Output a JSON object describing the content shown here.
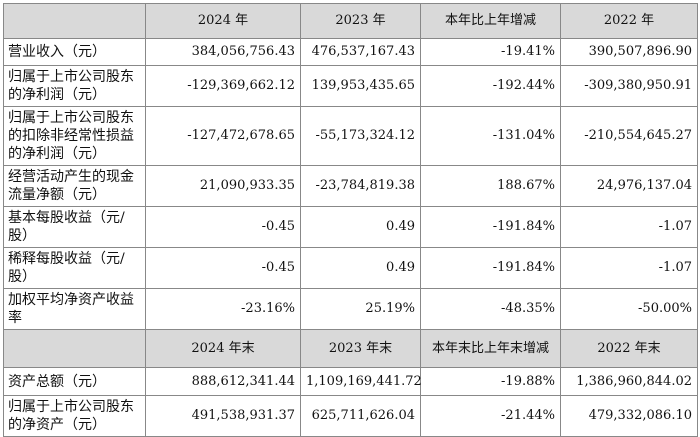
{
  "table": {
    "header": [
      "2024 年",
      "2023 年",
      "本年比上年增减",
      "2022 年"
    ],
    "rows": [
      [
        "营业收入（元）",
        "384,056,756.43",
        "476,537,167.43",
        "-19.41%",
        "390,507,896.90"
      ],
      [
        "归属于上市公司股东的净利润（元）",
        "-129,369,662.12",
        "139,953,435.65",
        "-192.44%",
        "-309,380,950.91"
      ],
      [
        "归属于上市公司股东的扣除非经常性损益的净利润（元）",
        "-127,472,678.65",
        "-55,173,324.12",
        "-131.04%",
        "-210,554,645.27"
      ],
      [
        "经营活动产生的现金流量净额（元）",
        "21,090,933.35",
        "-23,784,819.38",
        "188.67%",
        "24,976,137.04"
      ],
      [
        "基本每股收益（元/股）",
        "-0.45",
        "0.49",
        "-191.84%",
        "-1.07"
      ],
      [
        "稀释每股收益（元/股）",
        "-0.45",
        "0.49",
        "-191.84%",
        "-1.07"
      ],
      [
        "加权平均净资产收益率",
        "-23.16%",
        "25.19%",
        "-48.35%",
        "-50.00%"
      ]
    ],
    "header2": [
      "2024 年末",
      "2023 年末",
      "本年末比上年末增减",
      "2022 年末"
    ],
    "rows2": [
      [
        "资产总额（元）",
        "888,612,341.44",
        "1,109,169,441.72",
        "-19.88%",
        "1,386,960,844.02"
      ],
      [
        "归属于上市公司股东的净资产（元）",
        "491,538,931.37",
        "625,711,626.04",
        "-21.44%",
        "479,332,086.10"
      ]
    ]
  }
}
